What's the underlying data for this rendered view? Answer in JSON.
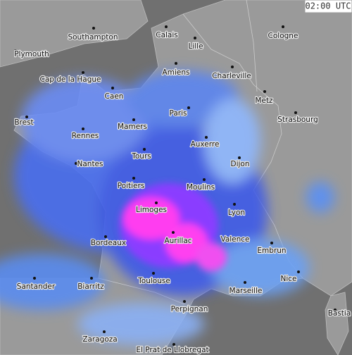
{
  "timestamp": "02:00 UTC",
  "cities": [
    "Southampton",
    "Calais",
    "Lille",
    "Cologne",
    "Plymouth",
    "Amiens",
    "Charleville",
    "Cap de la Hague",
    "Caen",
    "Metz",
    "Brest",
    "Paris",
    "Strasbourg",
    "Mamers",
    "Rennes",
    "Auxerre",
    "Tours",
    "Nantes",
    "Dijon",
    "Poitiers",
    "Moulins",
    "Limoges",
    "Lyon",
    "Aurillac",
    "Bordeaux",
    "Valence",
    "Embrun",
    "Santander",
    "Biarritz",
    "Toulouse",
    "Marseille",
    "Nice",
    "Bastia",
    "Perpignan",
    "Zaragoza",
    "El Prat de Llobregat"
  ]
}
